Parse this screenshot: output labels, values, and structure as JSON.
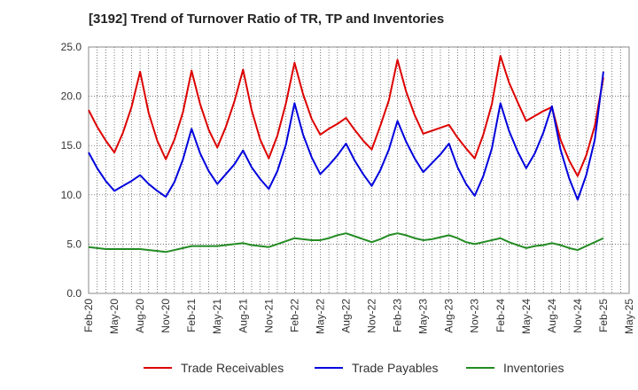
{
  "chart_data": {
    "type": "line",
    "title": "[3192]  Trend of Turnover Ratio of TR, TP and Inventories",
    "xlabel": "",
    "ylabel": "",
    "ylim": [
      0,
      25
    ],
    "yticks": [
      "0.0",
      "5.0",
      "10.0",
      "15.0",
      "20.0",
      "25.0"
    ],
    "x_tick_labels": [
      "Feb-20",
      "May-20",
      "Aug-20",
      "Nov-20",
      "Feb-21",
      "May-21",
      "Aug-21",
      "Nov-21",
      "Feb-22",
      "May-22",
      "Aug-22",
      "Nov-22",
      "Feb-23",
      "May-23",
      "Aug-23",
      "Nov-23",
      "Feb-24",
      "May-24",
      "Aug-24",
      "Nov-24",
      "Feb-25",
      "May-25"
    ],
    "x": [
      "2020-02",
      "2020-03",
      "2020-04",
      "2020-05",
      "2020-06",
      "2020-07",
      "2020-08",
      "2020-09",
      "2020-10",
      "2020-11",
      "2020-12",
      "2021-01",
      "2021-02",
      "2021-03",
      "2021-04",
      "2021-05",
      "2021-06",
      "2021-07",
      "2021-08",
      "2021-09",
      "2021-10",
      "2021-11",
      "2021-12",
      "2022-01",
      "2022-02",
      "2022-03",
      "2022-04",
      "2022-05",
      "2022-06",
      "2022-07",
      "2022-08",
      "2022-09",
      "2022-10",
      "2022-11",
      "2022-12",
      "2023-01",
      "2023-02",
      "2023-03",
      "2023-04",
      "2023-05",
      "2023-06",
      "2023-07",
      "2023-08",
      "2023-09",
      "2023-10",
      "2023-11",
      "2023-12",
      "2024-01",
      "2024-02",
      "2024-03",
      "2024-04",
      "2024-05",
      "2024-06",
      "2024-07",
      "2024-08",
      "2024-09",
      "2024-10",
      "2024-11",
      "2024-12",
      "2025-01",
      "2025-02"
    ],
    "grid": true,
    "legend_position": "bottom",
    "series": [
      {
        "name": "Trade Receivables",
        "color": "#dd0000",
        "values": [
          18.6,
          16.9,
          15.5,
          14.3,
          16.3,
          18.9,
          22.5,
          18.3,
          15.5,
          13.6,
          15.6,
          18.4,
          22.6,
          19.2,
          16.6,
          14.8,
          16.9,
          19.5,
          22.7,
          18.6,
          15.6,
          13.7,
          16.0,
          19.3,
          23.4,
          20.2,
          17.7,
          16.1,
          16.7,
          17.2,
          17.8,
          16.6,
          15.5,
          14.6,
          17.0,
          19.6,
          23.7,
          20.5,
          18.1,
          16.2,
          16.5,
          16.8,
          17.1,
          15.8,
          14.7,
          13.7,
          16.1,
          19.2,
          24.1,
          21.4,
          19.4,
          17.5,
          18.0,
          18.5,
          18.9,
          15.6,
          13.5,
          11.9,
          14.0,
          17.0,
          21.9
        ]
      },
      {
        "name": "Trade Payables",
        "color": "#0000dd",
        "values": [
          14.3,
          12.7,
          11.4,
          10.4,
          10.9,
          11.4,
          12.0,
          11.1,
          10.4,
          9.8,
          11.3,
          13.6,
          16.7,
          14.2,
          12.4,
          11.1,
          12.1,
          13.1,
          14.5,
          12.8,
          11.6,
          10.6,
          12.4,
          15.1,
          19.3,
          16.1,
          13.8,
          12.1,
          13.0,
          14.0,
          15.2,
          13.5,
          12.1,
          10.9,
          12.5,
          14.6,
          17.5,
          15.4,
          13.7,
          12.3,
          13.2,
          14.1,
          15.2,
          12.8,
          11.1,
          9.9,
          11.9,
          14.7,
          19.3,
          16.5,
          14.4,
          12.7,
          14.2,
          16.3,
          19.0,
          14.6,
          11.7,
          9.5,
          12.0,
          15.6,
          22.5
        ]
      },
      {
        "name": "Inventories",
        "color": "#228b22",
        "values": [
          4.7,
          4.6,
          4.5,
          4.5,
          4.5,
          4.5,
          4.5,
          4.4,
          4.3,
          4.2,
          4.4,
          4.6,
          4.8,
          4.8,
          4.8,
          4.8,
          4.9,
          5.0,
          5.1,
          4.9,
          4.8,
          4.7,
          5.0,
          5.3,
          5.6,
          5.5,
          5.4,
          5.4,
          5.6,
          5.9,
          6.1,
          5.8,
          5.5,
          5.2,
          5.5,
          5.9,
          6.1,
          5.9,
          5.6,
          5.4,
          5.5,
          5.7,
          5.9,
          5.6,
          5.2,
          5.0,
          5.2,
          5.4,
          5.6,
          5.2,
          4.9,
          4.6,
          4.8,
          4.9,
          5.1,
          4.9,
          4.6,
          4.4,
          4.8,
          5.2,
          5.6
        ]
      }
    ]
  }
}
